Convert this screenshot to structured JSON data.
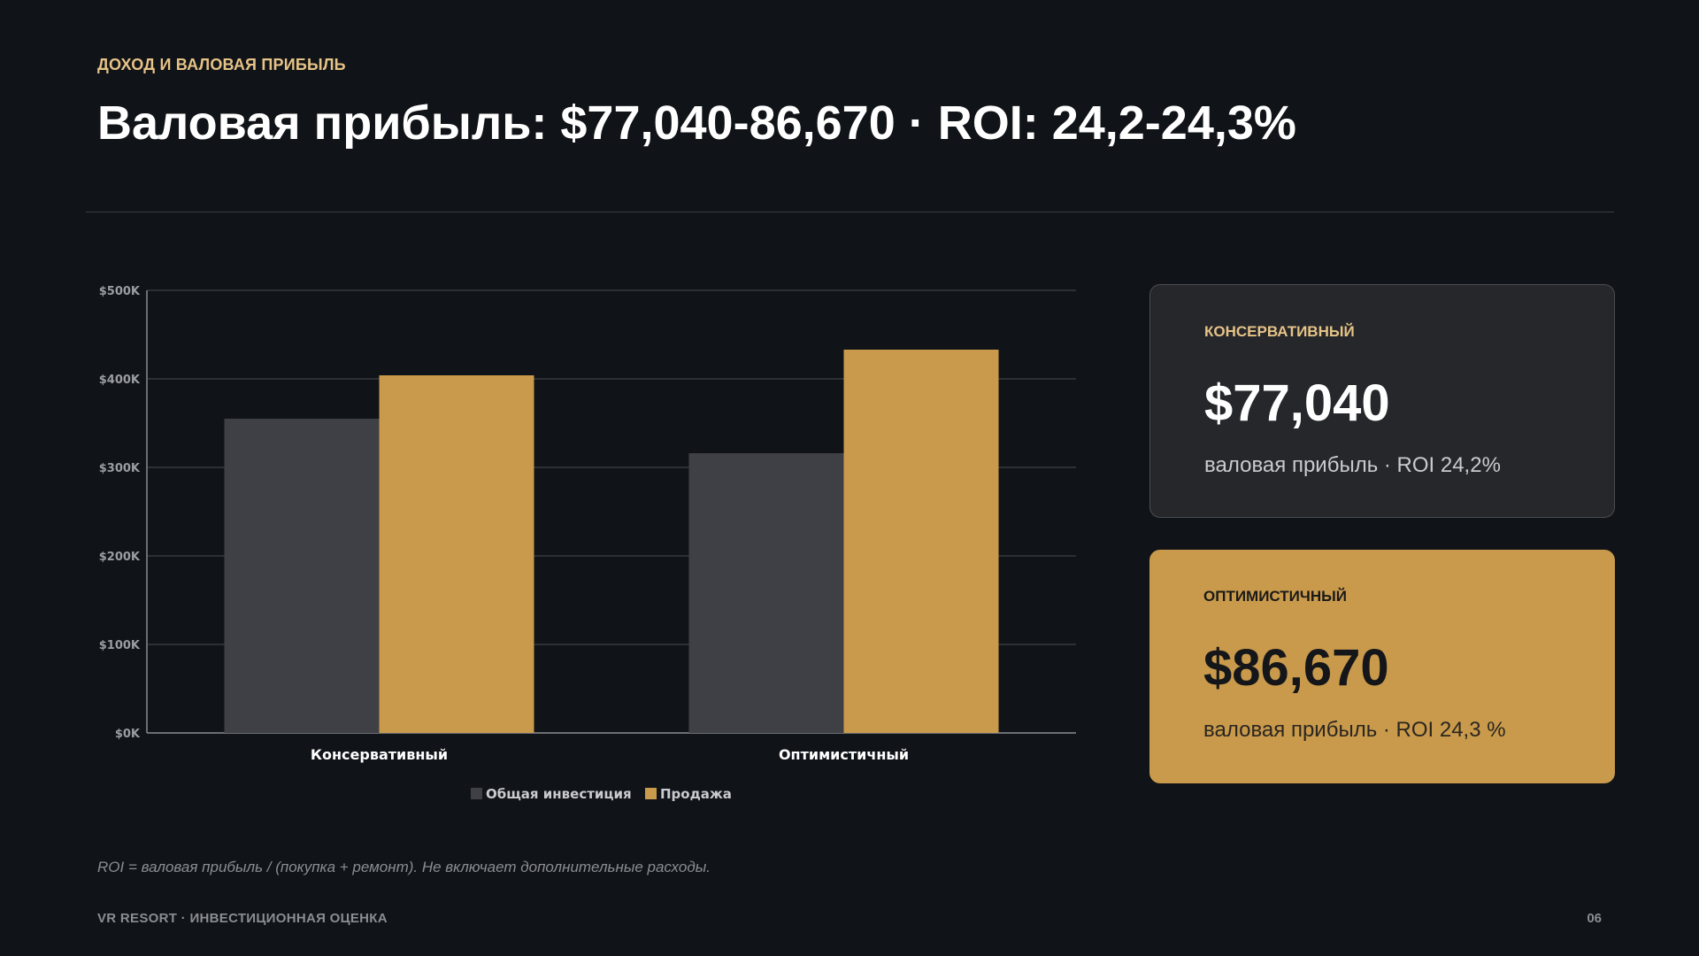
{
  "header": {
    "eyebrow": "ДОХОД И ВАЛОВАЯ ПРИБЫЛЬ",
    "title": "Валовая прибыль: $77,040-86,670 · ROI: 24,2-24,3%"
  },
  "chart_data": {
    "type": "bar",
    "categories": [
      "Консервативный",
      "Оптимистичный"
    ],
    "series": [
      {
        "name": "Общая инвестиция",
        "values": [
          355000,
          316000
        ],
        "color": "#3e4045"
      },
      {
        "name": "Продажа",
        "values": [
          404000,
          433000
        ],
        "color": "#c99a4b"
      }
    ],
    "ylim": [
      0,
      500000
    ],
    "yticks": [
      0,
      100000,
      200000,
      300000,
      400000,
      500000
    ],
    "ytick_labels": [
      "$0K",
      "$100K",
      "$200K",
      "$300K",
      "$400K",
      "$500K"
    ],
    "grid": true,
    "legend_position": "bottom",
    "xlabel": "",
    "ylabel": "",
    "title": ""
  },
  "cards": [
    {
      "label": "КОНСЕРВАТИВНЫЙ",
      "value": "$77,040",
      "sub": "валовая прибыль · ROI 24,2%",
      "style": "dark"
    },
    {
      "label": "ОПТИМИСТИЧНЫЙ",
      "value": "$86,670",
      "sub": "валовая прибыль · ROI 24,3 %",
      "style": "gold"
    }
  ],
  "footnote": "ROI = валовая прибыль / (покупка + ремонт). Не включает дополнительные расходы.",
  "footer": {
    "left": "VR RESORT · ИНВЕСТИЦИОННАЯ ОЦЕНКА",
    "page": "06"
  }
}
